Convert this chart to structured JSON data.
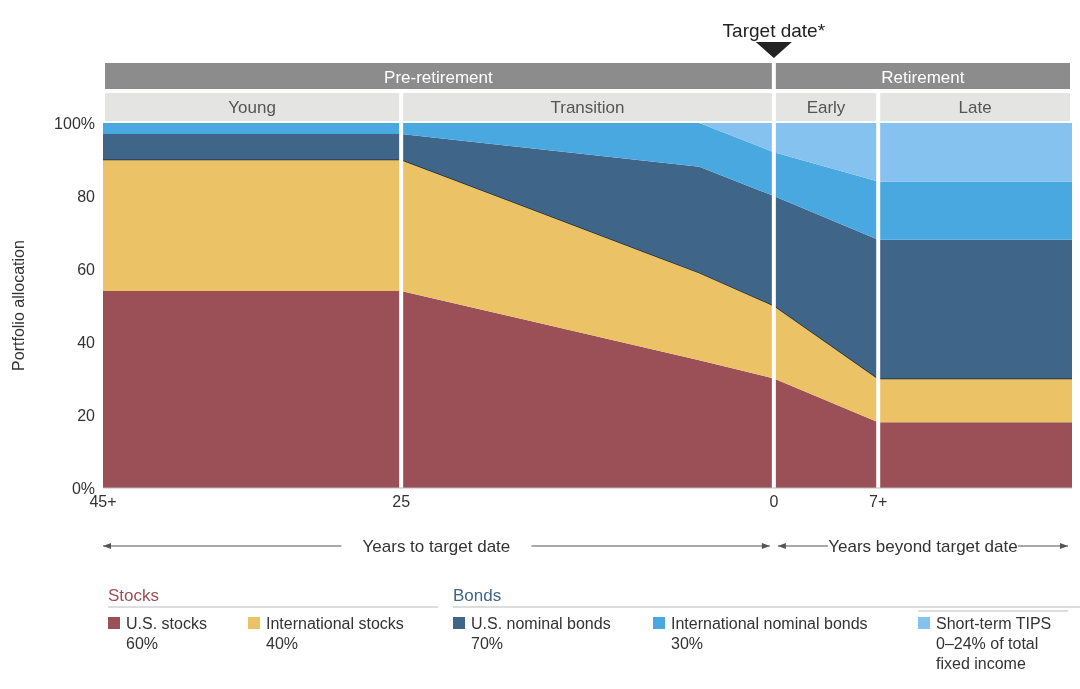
{
  "chart_data": {
    "type": "area",
    "stacked": true,
    "ylabel": "Portfolio allocation",
    "x": [
      -45,
      -25,
      -5,
      0,
      7,
      20
    ],
    "xlim": [
      -45,
      20
    ],
    "xticks": [
      {
        "value": -45,
        "label": "45+"
      },
      {
        "value": -25,
        "label": "25"
      },
      0,
      {
        "value": 7,
        "label": "7+"
      }
    ],
    "ylim": [
      0,
      100
    ],
    "yticks": [
      {
        "value": 0,
        "label": "0%"
      },
      20,
      40,
      60,
      80,
      {
        "value": 100,
        "label": "100%"
      }
    ],
    "series": [
      {
        "name": "U.S. stocks\n60%",
        "color": "#9b5058",
        "values": [
          54,
          54,
          35,
          30,
          18,
          18
        ]
      },
      {
        "name": "International stocks\n40%",
        "color": "#ecc266",
        "values": [
          36,
          36,
          24,
          20,
          12,
          12
        ]
      },
      {
        "name": "U.S. nominal bonds\n70%",
        "color": "#3f6689",
        "values": [
          7,
          7,
          29,
          30,
          38,
          38
        ]
      },
      {
        "name": "International nominal bonds\n30%",
        "color": "#4aa8e0",
        "values": [
          3,
          3,
          12,
          12,
          16,
          16
        ]
      },
      {
        "name": "Short-term TIPS\n0–24% of total fixed income",
        "color": "#85c2ef",
        "values": [
          0,
          0,
          0,
          8,
          16,
          16
        ]
      }
    ],
    "ref_lines": [
      {
        "axis": "x",
        "value": -25,
        "color": "#ffffff"
      },
      {
        "axis": "x",
        "value": 0,
        "label": "Target date*",
        "color": "#ffffff"
      },
      {
        "axis": "x",
        "value": 7,
        "color": "#ffffff"
      }
    ],
    "annotations": [
      "Years to target date",
      "Years beyond target date",
      "Stocks",
      "Bonds",
      "Pre-retirement",
      "Retirement",
      "Young",
      "Transition",
      "Early",
      "Late"
    ],
    "legend": "bottom",
    "grid": false,
    "marker": "none"
  }
}
